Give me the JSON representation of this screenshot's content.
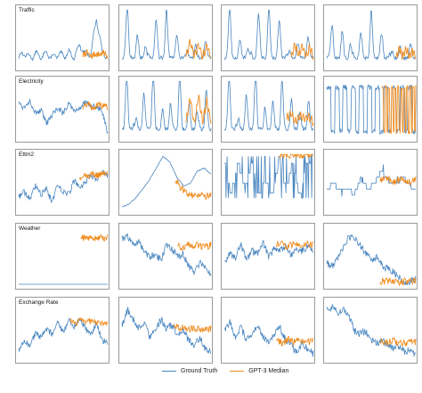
{
  "figure": {
    "rows": [
      "Traffic",
      "Electricity",
      "Ettm2",
      "Weather",
      "Exchange Rate"
    ],
    "columns": 4
  },
  "legend": {
    "ground_truth": "Ground Truth",
    "gpt3_median": "GPT-3 Median"
  },
  "colors": {
    "ground_truth": "#4a86c0",
    "gpt3_median": "#ef8c1f",
    "panel_border": "#9a9a9a"
  },
  "caption": "",
  "chart_data": {
    "type": "line",
    "layout": "5 rows x 4 columns small multiples",
    "xlabel": "",
    "ylabel": "",
    "grid": false,
    "legend_placement": "bottom-center",
    "series_names": [
      "Ground Truth",
      "GPT-3 Median"
    ],
    "panels": [
      {
        "row": "Traffic",
        "col": 1,
        "pattern": "periodic",
        "periods": 11,
        "gt": [
          0.2,
          0.3,
          0.2,
          0.28,
          0.22,
          0.3,
          0.2,
          0.27,
          0.24,
          0.3,
          0.22,
          0.45,
          0.25,
          0.3,
          0.95,
          0.3,
          0.25
        ],
        "forecast_start": 0.72,
        "forecast": [
          0.25,
          0.3,
          0.22,
          0.28,
          0.26,
          0.3,
          0.24
        ]
      },
      {
        "row": "Traffic",
        "col": 2,
        "pattern": "spiky-periodic",
        "periods": 9,
        "gt": [
          0.2,
          0.85,
          0.2,
          0.75,
          0.2,
          0.85,
          0.2,
          0.7,
          0.2,
          0.55,
          0.2,
          0.5,
          0.2,
          0.4,
          0.2
        ],
        "forecast_start": 0.72,
        "forecast": [
          0.2,
          0.45,
          0.2,
          0.4,
          0.2,
          0.38,
          0.2
        ]
      },
      {
        "row": "Traffic",
        "col": 3,
        "pattern": "spiky-periodic",
        "periods": 9,
        "gt": [
          0.2,
          0.8,
          0.2,
          0.65,
          0.2,
          0.95,
          0.2,
          0.75,
          0.2,
          0.8,
          0.2,
          0.55,
          0.2,
          0.45,
          0.2
        ],
        "forecast_start": 0.75,
        "forecast": [
          0.2,
          0.4,
          0.22,
          0.38,
          0.2,
          0.35,
          0.2
        ]
      },
      {
        "row": "Traffic",
        "col": 4,
        "pattern": "spiky-periodic",
        "periods": 9,
        "gt": [
          0.2,
          0.6,
          0.2,
          0.85,
          0.2,
          0.6,
          0.2,
          0.7,
          0.2,
          0.6,
          0.2,
          0.45,
          0.2,
          0.35,
          0.2
        ],
        "forecast_start": 0.78,
        "forecast": [
          0.2,
          0.35,
          0.2,
          0.33,
          0.2,
          0.3,
          0.2
        ]
      },
      {
        "row": "Electricity",
        "col": 1,
        "pattern": "noisy",
        "periods": 0,
        "gt": [
          0.7,
          0.6,
          0.75,
          0.5,
          0.55,
          0.3,
          0.45,
          0.6,
          0.5,
          0.7,
          0.55,
          0.6,
          0.7,
          0.65,
          0.6,
          0.55,
          0.1
        ],
        "forecast_start": 0.72,
        "forecast": [
          0.62,
          0.68,
          0.6,
          0.66,
          0.64,
          0.62
        ]
      },
      {
        "row": "Electricity",
        "col": 2,
        "pattern": "spiky-periodic",
        "periods": 10,
        "gt": [
          0.3,
          0.9,
          0.2,
          0.8,
          0.3,
          0.85,
          0.2,
          0.75,
          0.3,
          0.8,
          0.2,
          0.7,
          0.3,
          0.75,
          0.2
        ],
        "forecast_start": 0.72,
        "forecast": [
          0.3,
          0.7,
          0.25,
          0.75,
          0.3,
          0.65,
          0.3
        ]
      },
      {
        "row": "Electricity",
        "col": 3,
        "pattern": "spiky-periodic",
        "periods": 10,
        "gt": [
          0.25,
          0.9,
          0.2,
          0.75,
          0.3,
          0.85,
          0.2,
          0.8,
          0.3,
          0.75,
          0.25,
          0.7,
          0.3,
          0.6,
          0.2
        ],
        "forecast_start": 0.7,
        "forecast": [
          0.35,
          0.45,
          0.3,
          0.4,
          0.35,
          0.38,
          0.3
        ]
      },
      {
        "row": "Electricity",
        "col": 4,
        "pattern": "square",
        "periods": 11,
        "gt": [
          0.15,
          0.9,
          0.15,
          0.9,
          0.15,
          0.9,
          0.15,
          0.9,
          0.15,
          0.9,
          0.15,
          0.9,
          0.15
        ],
        "forecast_start": 0.62,
        "forecast": [
          0.15,
          0.85,
          0.15,
          0.85,
          0.15,
          0.85,
          0.15,
          0.85
        ]
      },
      {
        "row": "Ettm2",
        "col": 1,
        "pattern": "noisy",
        "periods": 0,
        "gt": [
          0.3,
          0.4,
          0.25,
          0.5,
          0.35,
          0.45,
          0.2,
          0.55,
          0.4,
          0.35,
          0.6,
          0.5,
          0.55,
          0.7,
          0.6,
          0.75,
          0.7
        ],
        "forecast_start": 0.68,
        "forecast": [
          0.65,
          0.72,
          0.68,
          0.74,
          0.7,
          0.75,
          0.72
        ]
      },
      {
        "row": "Ettm2",
        "col": 2,
        "pattern": "smooth",
        "periods": 0,
        "gt": [
          0.1,
          0.15,
          0.25,
          0.4,
          0.55,
          0.75,
          0.95,
          0.85,
          0.6,
          0.45,
          0.5,
          0.7,
          0.75,
          0.65
        ],
        "forecast_start": 0.6,
        "forecast": [
          0.55,
          0.4,
          0.3,
          0.28,
          0.28,
          0.28
        ]
      },
      {
        "row": "Ettm2",
        "col": 3,
        "pattern": "steps-spiky",
        "periods": 0,
        "gt": [
          0.85,
          0.3,
          0.85,
          0.4,
          0.85,
          0.3,
          0.5,
          0.3,
          0.85,
          0.4,
          0.85,
          0.3,
          0.85,
          0.95
        ],
        "forecast_start": 0.62,
        "forecast": [
          0.97,
          0.97,
          0.97,
          0.97,
          0.97,
          0.97
        ]
      },
      {
        "row": "Ettm2",
        "col": 4,
        "pattern": "steps",
        "periods": 0,
        "gt": [
          0.4,
          0.5,
          0.35,
          0.45,
          0.3,
          0.6,
          0.4,
          0.5,
          0.7,
          0.55,
          0.45,
          0.6,
          0.5,
          0.35
        ],
        "forecast_start": 0.6,
        "forecast": [
          0.55,
          0.6,
          0.52,
          0.58,
          0.5,
          0.55
        ]
      },
      {
        "row": "Weather",
        "col": 1,
        "pattern": "flat",
        "periods": 0,
        "gt": [
          0.05,
          0.05,
          0.05,
          0.05,
          0.05,
          0.05,
          0.05,
          0.05,
          0.05,
          0.05
        ],
        "forecast_start": 0.7,
        "forecast": [
          0.92,
          0.92,
          0.92,
          0.92,
          0.92
        ]
      },
      {
        "row": "Weather",
        "col": 2,
        "pattern": "noisy",
        "periods": 0,
        "gt": [
          0.8,
          0.85,
          0.7,
          0.75,
          0.6,
          0.5,
          0.55,
          0.45,
          0.7,
          0.65,
          0.5,
          0.55,
          0.35,
          0.25,
          0.4,
          0.3,
          0.2
        ],
        "forecast_start": 0.62,
        "forecast": [
          0.7,
          0.66,
          0.72,
          0.68,
          0.7,
          0.67,
          0.7
        ]
      },
      {
        "row": "Weather",
        "col": 3,
        "pattern": "noisy",
        "periods": 0,
        "gt": [
          0.4,
          0.55,
          0.5,
          0.7,
          0.45,
          0.6,
          0.55,
          0.75,
          0.5,
          0.65,
          0.6,
          0.7,
          0.55,
          0.65,
          0.6,
          0.7,
          0.62
        ],
        "forecast_start": 0.58,
        "forecast": [
          0.7,
          0.72,
          0.68,
          0.73,
          0.7,
          0.72,
          0.7
        ]
      },
      {
        "row": "Weather",
        "col": 4,
        "pattern": "noisy",
        "periods": 0,
        "gt": [
          0.4,
          0.35,
          0.5,
          0.65,
          0.85,
          0.8,
          0.7,
          0.55,
          0.45,
          0.5,
          0.35,
          0.3,
          0.25,
          0.15,
          0.08,
          0.1,
          0.12
        ],
        "forecast_start": 0.6,
        "forecast": [
          0.1,
          0.09,
          0.1,
          0.08,
          0.09,
          0.08,
          0.09
        ]
      },
      {
        "row": "Exchange Rate",
        "col": 1,
        "pattern": "noisy",
        "periods": 0,
        "gt": [
          0.2,
          0.35,
          0.3,
          0.5,
          0.45,
          0.6,
          0.5,
          0.7,
          0.55,
          0.75,
          0.65,
          0.8,
          0.6,
          0.5,
          0.7,
          0.4,
          0.3
        ],
        "forecast_start": 0.58,
        "forecast": [
          0.75,
          0.72,
          0.76,
          0.74,
          0.72,
          0.7,
          0.68
        ]
      },
      {
        "row": "Exchange Rate",
        "col": 2,
        "pattern": "noisy",
        "periods": 0,
        "gt": [
          0.6,
          0.85,
          0.7,
          0.55,
          0.65,
          0.4,
          0.5,
          0.7,
          0.55,
          0.6,
          0.45,
          0.5,
          0.35,
          0.25,
          0.4,
          0.2,
          0.15
        ],
        "forecast_start": 0.58,
        "forecast": [
          0.58,
          0.56,
          0.55,
          0.54,
          0.55,
          0.52,
          0.53
        ]
      },
      {
        "row": "Exchange Rate",
        "col": 3,
        "pattern": "noisy",
        "periods": 0,
        "gt": [
          0.5,
          0.65,
          0.4,
          0.55,
          0.35,
          0.45,
          0.6,
          0.4,
          0.3,
          0.45,
          0.55,
          0.35,
          0.25,
          0.15,
          0.3,
          0.2,
          0.12
        ],
        "forecast_start": 0.58,
        "forecast": [
          0.35,
          0.3,
          0.36,
          0.32,
          0.34,
          0.31,
          0.33
        ]
      },
      {
        "row": "Exchange Rate",
        "col": 4,
        "pattern": "noisy",
        "periods": 0,
        "gt": [
          0.85,
          0.9,
          0.8,
          0.85,
          0.75,
          0.5,
          0.45,
          0.5,
          0.35,
          0.3,
          0.35,
          0.25,
          0.2,
          0.25,
          0.15,
          0.2,
          0.1
        ],
        "forecast_start": 0.6,
        "forecast": [
          0.32,
          0.3,
          0.33,
          0.31,
          0.3,
          0.32,
          0.31
        ]
      }
    ]
  }
}
